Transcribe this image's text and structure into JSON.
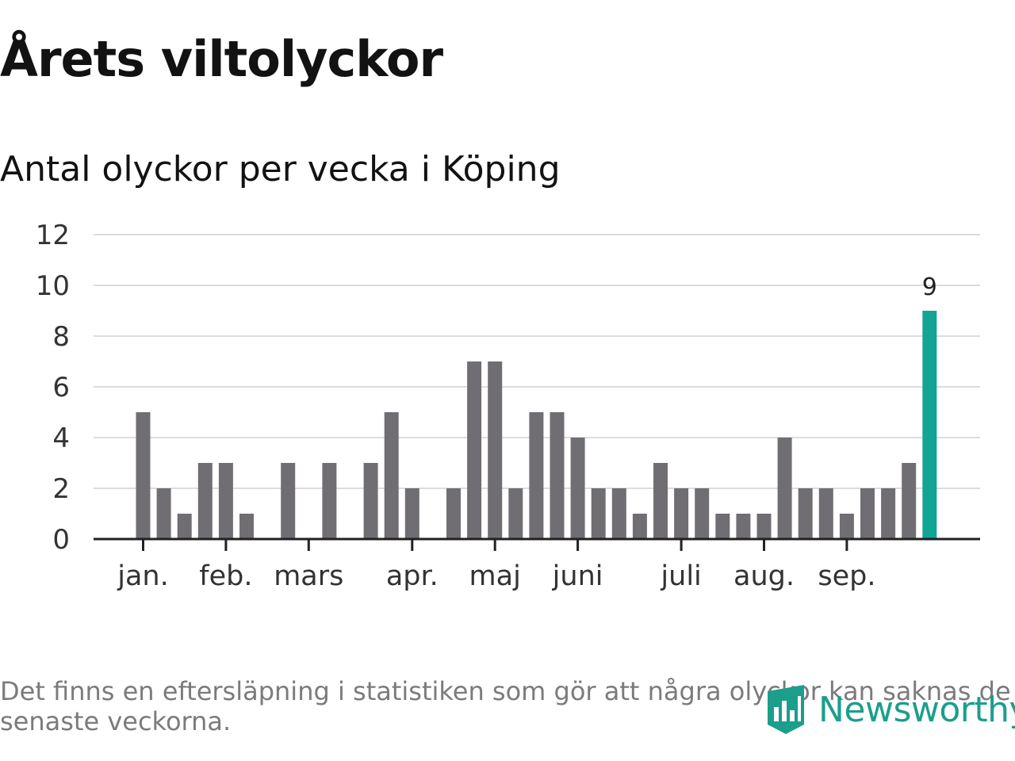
{
  "title": "Årets viltolyckor",
  "subtitle": "Antal olyckor per vecka i Köping",
  "footnote": "Det finns en eftersläpning i statistiken som gör att några olyckor kan saknas de senaste veckorna.",
  "brand": {
    "name": "Newsworthy",
    "icon": "newsworthy-logo-icon"
  },
  "colors": {
    "bar": "#706e73",
    "highlight": "#12a595",
    "grid": "#dcdcdc",
    "axis": "#222222",
    "label": "#333333",
    "brand": "#1b9e8c"
  },
  "chart_data": {
    "type": "bar",
    "title": "Antal olyckor per vecka i Köping",
    "xlabel": "",
    "ylabel": "",
    "ylim": [
      0,
      12
    ],
    "yticks": [
      0,
      2,
      4,
      6,
      8,
      10,
      12
    ],
    "grid": true,
    "weeks": [
      1,
      2,
      3,
      4,
      5,
      6,
      7,
      8,
      9,
      10,
      11,
      12,
      13,
      14,
      15,
      16,
      17,
      18,
      19,
      20,
      21,
      22,
      23,
      24,
      25,
      26,
      27,
      28,
      29,
      30,
      31,
      32,
      33,
      34,
      35,
      36,
      37,
      38,
      39
    ],
    "values": [
      5,
      2,
      1,
      3,
      3,
      1,
      0,
      3,
      0,
      3,
      0,
      3,
      5,
      2,
      0,
      2,
      7,
      7,
      2,
      5,
      5,
      4,
      2,
      2,
      1,
      3,
      2,
      2,
      1,
      1,
      1,
      4,
      2,
      2,
      1,
      2,
      2,
      3,
      9
    ],
    "highlight_index": 38,
    "highlight_label": "9",
    "month_ticks": [
      {
        "label": "jan.",
        "week": 1
      },
      {
        "label": "feb.",
        "week": 5
      },
      {
        "label": "mars",
        "week": 9
      },
      {
        "label": "apr.",
        "week": 14
      },
      {
        "label": "maj",
        "week": 18
      },
      {
        "label": "juni",
        "week": 22
      },
      {
        "label": "juli",
        "week": 27
      },
      {
        "label": "aug.",
        "week": 31
      },
      {
        "label": "sep.",
        "week": 35
      }
    ]
  }
}
